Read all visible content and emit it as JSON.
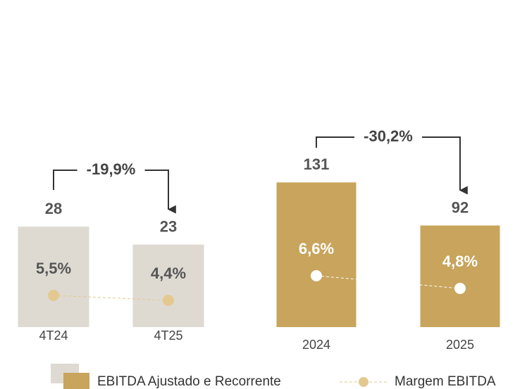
{
  "chart_data": [
    {
      "type": "bar",
      "categories": [
        "4T24",
        "4T25"
      ],
      "annotation": "-19,9%",
      "series": [
        {
          "name": "EBITDA Ajustado e Recorrente",
          "color": "#dedad2",
          "values": [
            28,
            23
          ]
        },
        {
          "name": "Margem EBITDA",
          "color": "#e3c98f",
          "values": [
            5.5,
            4.4
          ],
          "value_labels": [
            "5,5%",
            "4,4%"
          ]
        }
      ]
    },
    {
      "type": "bar",
      "categories": [
        "2024",
        "2025"
      ],
      "annotation": "-30,2%",
      "series": [
        {
          "color": "#c8a45c",
          "values": [
            131,
            92
          ]
        },
        {
          "color": "#ffffff",
          "values": [
            6.6,
            4.8
          ],
          "value_labels": [
            "6,6%",
            "4,8%"
          ]
        }
      ]
    }
  ]
}
